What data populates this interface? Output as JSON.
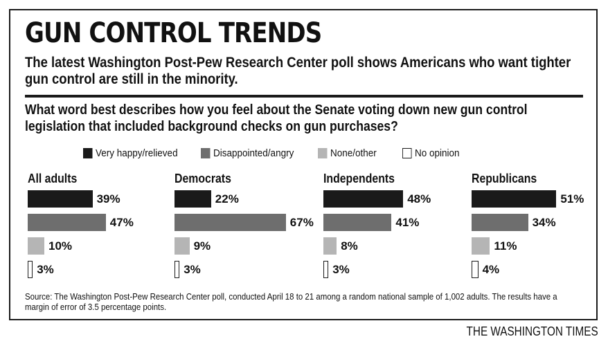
{
  "title": "GUN CONTROL TRENDS",
  "subtitle": "The latest Washington Post-Pew Research Center poll shows Americans who want tighter gun control are still in the minority.",
  "question": "What word best describes how you feel about the Senate voting down new gun control legislation that included background checks on gun purchases?",
  "source": "Source: The Washington Post-Pew Research Center poll, conducted April 18 to 21 among a random national sample of 1,002 adults. The results have a margin of error of 3.5 percentage points.",
  "credit": "THE WASHINGTON TIMES",
  "colors": {
    "very_happy": "#1a1a1a",
    "disappointed": "#6e6e6e",
    "none_other": "#b5b5b5",
    "no_opinion": "#ffffff"
  },
  "chart_data": {
    "type": "bar",
    "orientation": "horizontal",
    "title": "GUN CONTROL TRENDS",
    "unit": "%",
    "series_names": [
      "Very happy/relieved",
      "Disappointed/angry",
      "None/other",
      "No opinion"
    ],
    "groups": [
      {
        "name": "All adults",
        "values": [
          39,
          47,
          10,
          3
        ],
        "labels": [
          "39%",
          "47%",
          "10%",
          "3%"
        ]
      },
      {
        "name": "Democrats",
        "values": [
          22,
          67,
          9,
          3
        ],
        "labels": [
          "22%",
          "67%",
          "9%",
          "3%"
        ]
      },
      {
        "name": "Independents",
        "values": [
          48,
          41,
          8,
          3
        ],
        "labels": [
          "48%",
          "41%",
          "8%",
          "3%"
        ]
      },
      {
        "name": "Republicans",
        "values": [
          51,
          34,
          11,
          4
        ],
        "labels": [
          "51%",
          "34%",
          "11%",
          "4%"
        ]
      }
    ],
    "legend_position": "top"
  }
}
